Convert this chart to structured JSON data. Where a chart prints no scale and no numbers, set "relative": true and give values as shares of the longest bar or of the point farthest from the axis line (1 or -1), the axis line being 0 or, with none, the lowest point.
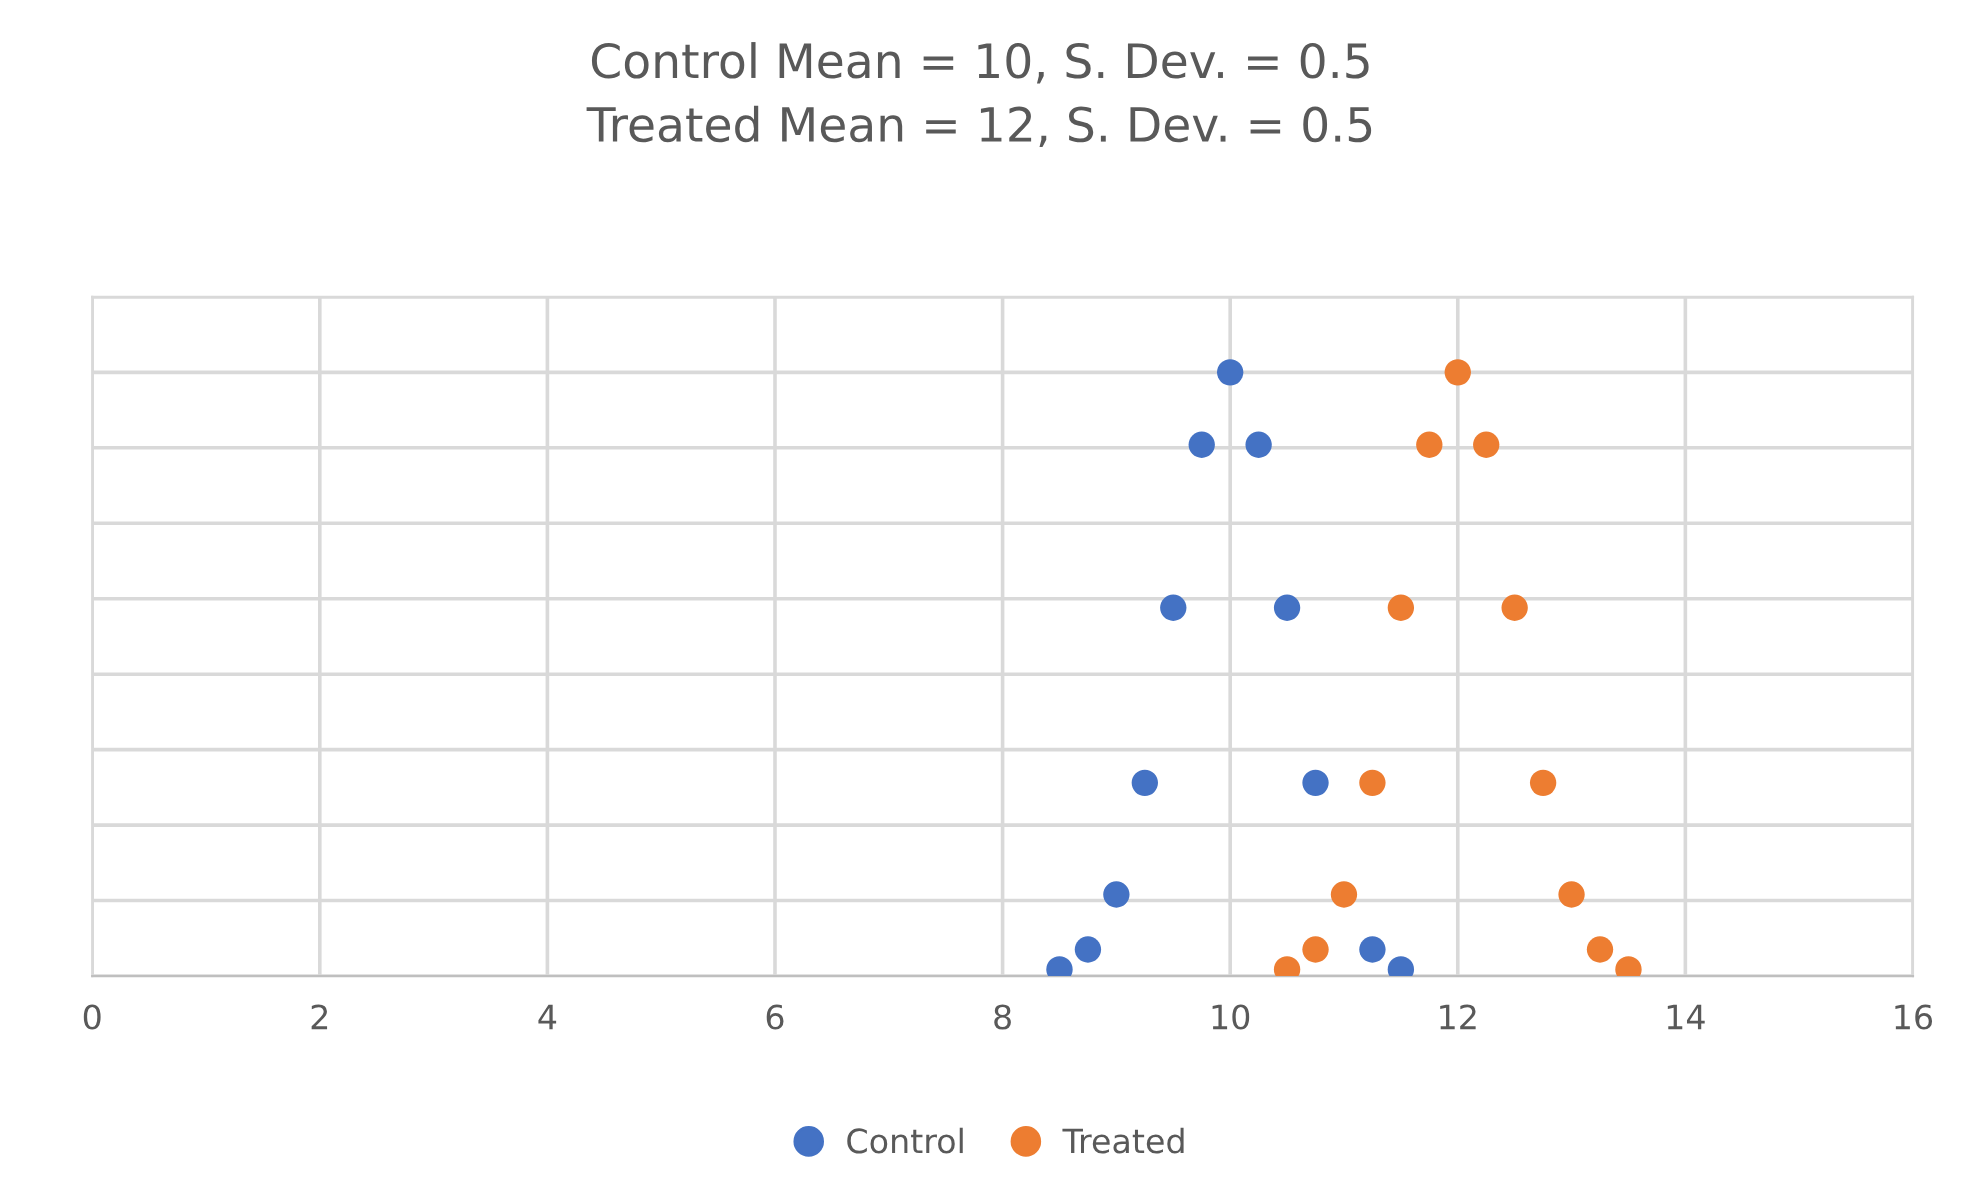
{
  "chart_data": {
    "type": "scatter",
    "title": "Control Mean = 10, S. Dev. = 0.5\nTreated Mean = 12, S. Dev. = 0.5",
    "relative": true,
    "xlim": [
      0,
      16
    ],
    "xticks": [
      0,
      2,
      4,
      6,
      8,
      10,
      12,
      14,
      16
    ],
    "grid": true,
    "legend": "bottom",
    "marker": "circle",
    "series": [
      {
        "name": "Control",
        "color": "#4472c4",
        "x": [
          8.5,
          8.75,
          9,
          9.25,
          9.5,
          9.75,
          10,
          10.25,
          10.5,
          10.75,
          11,
          11.25,
          11.5
        ],
        "values": [
          0.011,
          0.044,
          0.135,
          0.32,
          0.61,
          0.88,
          1,
          0.88,
          0.61,
          0.32,
          null,
          0.044,
          0.011
        ]
      },
      {
        "name": "Treated",
        "color": "#ed7d31",
        "x": [
          10.5,
          10.75,
          11,
          11.25,
          11.5,
          11.75,
          12,
          12.25,
          12.5,
          12.75,
          13,
          13.25,
          13.5
        ],
        "values": [
          0.011,
          0.044,
          0.135,
          0.32,
          0.61,
          0.88,
          1,
          0.88,
          0.61,
          0.32,
          0.135,
          0.044,
          0.011
        ]
      }
    ]
  }
}
